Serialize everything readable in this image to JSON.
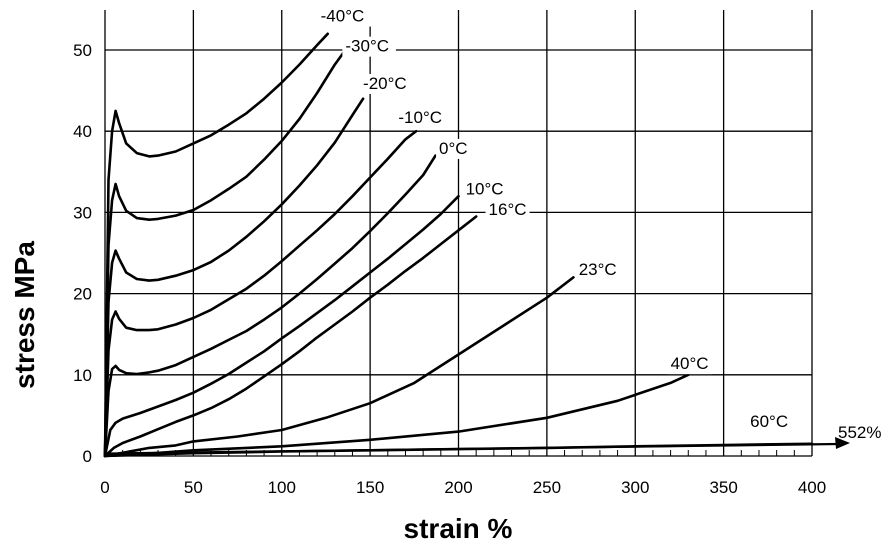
{
  "chart_data": {
    "type": "line",
    "title": "",
    "xlabel": "strain %",
    "ylabel": "stress MPa",
    "xlim": [
      0,
      400
    ],
    "ylim": [
      0,
      55
    ],
    "xticks": [
      0,
      50,
      100,
      150,
      200,
      250,
      300,
      350,
      400
    ],
    "yticks": [
      0,
      10,
      20,
      30,
      40,
      50
    ],
    "grid": true,
    "arrow_label": "552%",
    "series": [
      {
        "name": "-40°C",
        "x": [
          0,
          2,
          4,
          6,
          8,
          12,
          18,
          25,
          30,
          40,
          50,
          60,
          70,
          80,
          90,
          100,
          110,
          120,
          126
        ],
        "y": [
          0,
          34,
          40,
          42.5,
          41,
          38.5,
          37.3,
          36.9,
          37,
          37.5,
          38.5,
          39.5,
          40.8,
          42.2,
          44,
          46,
          48.2,
          50.6,
          52
        ]
      },
      {
        "name": "-30°C",
        "x": [
          0,
          2,
          4,
          6,
          8,
          12,
          18,
          25,
          30,
          40,
          50,
          60,
          70,
          80,
          90,
          100,
          110,
          120,
          130,
          136
        ],
        "y": [
          0,
          26,
          31.5,
          33.5,
          32,
          30.2,
          29.3,
          29.1,
          29.2,
          29.6,
          30.3,
          31.5,
          32.9,
          34.4,
          36.5,
          38.8,
          41.5,
          44.7,
          48.2,
          50
        ]
      },
      {
        "name": "-20°C",
        "x": [
          0,
          2,
          4,
          6,
          8,
          12,
          18,
          25,
          30,
          40,
          50,
          60,
          70,
          80,
          90,
          100,
          110,
          120,
          130,
          140,
          146
        ],
        "y": [
          0,
          19,
          23.8,
          25.3,
          24.3,
          22.6,
          21.8,
          21.6,
          21.7,
          22.2,
          22.9,
          23.9,
          25.3,
          27,
          28.9,
          31,
          33.3,
          35.8,
          38.6,
          42,
          44
        ]
      },
      {
        "name": "-10°C",
        "x": [
          0,
          2,
          4,
          6,
          8,
          12,
          18,
          25,
          30,
          40,
          50,
          60,
          70,
          80,
          90,
          100,
          110,
          120,
          130,
          140,
          150,
          160,
          170,
          176
        ],
        "y": [
          0,
          13,
          16.8,
          17.8,
          16.9,
          15.8,
          15.5,
          15.5,
          15.6,
          16.2,
          17,
          18,
          19.3,
          20.6,
          22.2,
          24,
          25.9,
          27.8,
          29.8,
          32,
          34.3,
          36.6,
          39,
          40
        ]
      },
      {
        "name": "0°C",
        "x": [
          0,
          2,
          4,
          6,
          8,
          12,
          18,
          25,
          30,
          40,
          50,
          60,
          70,
          80,
          90,
          100,
          110,
          120,
          130,
          140,
          150,
          160,
          170,
          180,
          187
        ],
        "y": [
          0,
          8,
          10.7,
          11.1,
          10.6,
          10.2,
          10.1,
          10.3,
          10.5,
          11.2,
          12.2,
          13.2,
          14.3,
          15.4,
          16.8,
          18.3,
          20,
          21.8,
          23.7,
          25.6,
          27.7,
          29.9,
          32.2,
          34.6,
          37
        ]
      },
      {
        "name": "10°C",
        "x": [
          0,
          3,
          6,
          10,
          20,
          30,
          40,
          50,
          60,
          70,
          80,
          90,
          100,
          110,
          120,
          130,
          140,
          150,
          160,
          170,
          180,
          190,
          200
        ],
        "y": [
          0,
          3.2,
          4.1,
          4.6,
          5.3,
          6.1,
          6.9,
          7.8,
          8.9,
          10.1,
          11.5,
          12.9,
          14.5,
          16,
          17.6,
          19.2,
          20.9,
          22.6,
          24.3,
          26.1,
          27.9,
          29.8,
          32
        ]
      },
      {
        "name": "16°C",
        "x": [
          0,
          5,
          10,
          20,
          30,
          40,
          50,
          60,
          70,
          80,
          90,
          100,
          110,
          120,
          130,
          140,
          150,
          160,
          170,
          180,
          190,
          200,
          210
        ],
        "y": [
          0,
          1,
          1.6,
          2.4,
          3.3,
          4.2,
          5,
          5.9,
          7,
          8.3,
          9.8,
          11.3,
          12.9,
          14.6,
          16.2,
          17.8,
          19.5,
          21.1,
          22.8,
          24.4,
          26.1,
          27.8,
          29.5
        ]
      },
      {
        "name": "23°C",
        "x": [
          0,
          10,
          25,
          40,
          50,
          75,
          100,
          125,
          150,
          175,
          200,
          225,
          250,
          265
        ],
        "y": [
          0,
          0.4,
          1,
          1.3,
          1.8,
          2.4,
          3.2,
          4.7,
          6.5,
          9,
          12.5,
          16,
          19.5,
          22
        ]
      },
      {
        "name": "40°C",
        "x": [
          0,
          25,
          50,
          100,
          150,
          200,
          250,
          290,
          320,
          330
        ],
        "y": [
          0,
          0.3,
          0.7,
          1.2,
          2,
          3,
          4.7,
          6.8,
          9,
          10
        ]
      },
      {
        "name": "60°C",
        "x": [
          0,
          25,
          50,
          100,
          150,
          200,
          250,
          300,
          350,
          400
        ],
        "y": [
          0,
          0.2,
          0.35,
          0.55,
          0.7,
          0.85,
          1,
          1.2,
          1.35,
          1.5
        ]
      }
    ],
    "labels": [
      {
        "text": "-40°C",
        "x": 122,
        "y": 53.5
      },
      {
        "text": "-30°C",
        "x": 136,
        "y": 49.8
      },
      {
        "text": "-20°C",
        "x": 146,
        "y": 45.2
      },
      {
        "text": "-10°C",
        "x": 166,
        "y": 41
      },
      {
        "text": "0°C",
        "x": 189,
        "y": 37.2
      },
      {
        "text": "10°C",
        "x": 204,
        "y": 32.2
      },
      {
        "text": "16°C",
        "x": 217,
        "y": 29.7
      },
      {
        "text": "23°C",
        "x": 268,
        "y": 22.3
      },
      {
        "text": "40°C",
        "x": 320,
        "y": 10.7
      },
      {
        "text": "60°C",
        "x": 365,
        "y": 3.6
      }
    ]
  }
}
